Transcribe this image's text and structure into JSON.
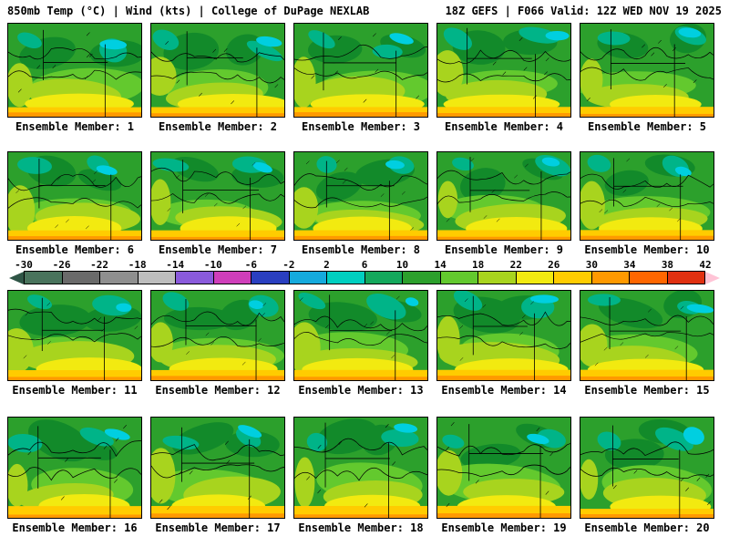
{
  "header": {
    "left": "850mb Temp (°C) | Wind (kts) | College of DuPage NEXLAB",
    "right": "18Z GEFS | F066 Valid: 12Z WED NOV 19 2025"
  },
  "colorbar": {
    "ticks": [
      "-30",
      "-26",
      "-22",
      "-18",
      "-14",
      "-10",
      "-6",
      "-2",
      "2",
      "6",
      "10",
      "14",
      "18",
      "22",
      "26",
      "30",
      "34",
      "38",
      "42"
    ],
    "segment_colors": [
      "#49735c",
      "#6a6a6a",
      "#8f8f8f",
      "#bdbdbd",
      "#8a5adb",
      "#cf3eba",
      "#2a3fc0",
      "#15aadd",
      "#00cfc0",
      "#14a85c",
      "#2ca02c",
      "#63c92e",
      "#a8d41e",
      "#f2ea10",
      "#ffcc00",
      "#ff9900",
      "#ff6600",
      "#e03010"
    ],
    "left_arrow_color": "#2f5546",
    "right_arrow_color": "#ffc4d6"
  },
  "map_palette": {
    "base_green": "#2ca02c",
    "dark_green": "#128a2a",
    "teal": "#00b488",
    "cyan": "#00cfe0",
    "light_green": "#63c92e",
    "yellow_green": "#a8d41e",
    "yellow": "#f2ea10",
    "gold": "#ffcc00",
    "orange": "#ff9900",
    "contour": "#000000"
  },
  "panels": [
    {
      "label": "Ensemble Member: 1"
    },
    {
      "label": "Ensemble Member: 2"
    },
    {
      "label": "Ensemble Member: 3"
    },
    {
      "label": "Ensemble Member: 4"
    },
    {
      "label": "Ensemble Member: 5"
    },
    {
      "label": "Ensemble Member: 6"
    },
    {
      "label": "Ensemble Member: 7"
    },
    {
      "label": "Ensemble Member: 8"
    },
    {
      "label": "Ensemble Member: 9"
    },
    {
      "label": "Ensemble Member: 10"
    },
    {
      "label": "Ensemble Member: 11"
    },
    {
      "label": "Ensemble Member: 12"
    },
    {
      "label": "Ensemble Member: 13"
    },
    {
      "label": "Ensemble Member: 14"
    },
    {
      "label": "Ensemble Member: 15"
    },
    {
      "label": "Ensemble Member: 16"
    },
    {
      "label": "Ensemble Member: 17"
    },
    {
      "label": "Ensemble Member: 18"
    },
    {
      "label": "Ensemble Member: 19"
    },
    {
      "label": "Ensemble Member: 20"
    }
  ]
}
